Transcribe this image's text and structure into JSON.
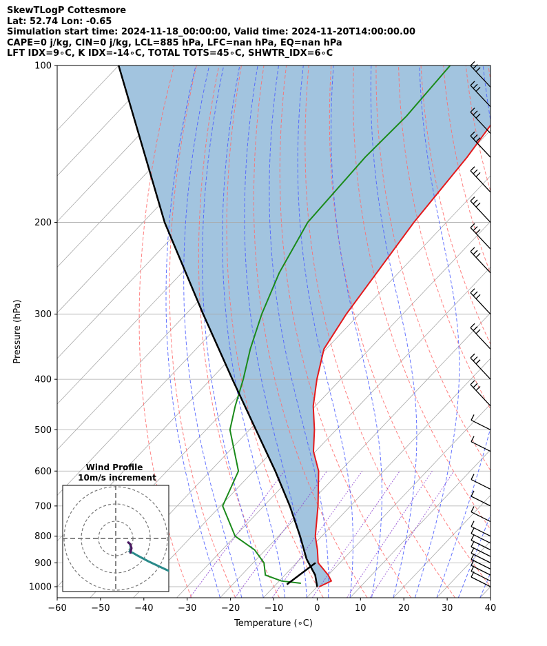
{
  "header": {
    "lines": [
      "SkewTLogP Cottesmore",
      "Lat: 52.74   Lon: -0.65",
      "Simulation start time: 2024-11-18_00:00:00, Valid time: 2024-11-20T14:00:00.00",
      "CAPE=0 j/kg, CIN=0 j/kg, LCL=885 hPa, LFC=nan hPa, EQ=nan hPa",
      "LFT IDX=9∘C, K IDX=-14∘C, TOTAL TOTS=45∘C, SHWTR_IDX=6∘C"
    ]
  },
  "chart_data": {
    "type": "skewt",
    "xlabel": "Temperature (∘C)",
    "ylabel": "Pressure (hPa)",
    "xlim": [
      -60,
      40
    ],
    "ylim": [
      1050,
      100
    ],
    "x_ticks": [
      "−60",
      "−50",
      "−40",
      "−30",
      "−20",
      "−10",
      "0",
      "10",
      "20",
      "30",
      "40"
    ],
    "y_ticks": [
      "100",
      "200",
      "300",
      "400",
      "500",
      "600",
      "700",
      "800",
      "900",
      "1000"
    ],
    "y_tick_values": [
      100,
      200,
      300,
      400,
      500,
      600,
      700,
      800,
      900,
      1000
    ],
    "grid": true,
    "colors": {
      "temperature": "#e41a1c",
      "dewpoint": "#1a8a1a",
      "parcel": "#000000",
      "cin_area": "#a2c4df",
      "dry_adiabat": "#ff6b6b",
      "moist_adiabat": "#4a5cff",
      "mixing_ratio": "#8a3fd0",
      "isotherm": "#a9a9a9",
      "hodograph": "#2a8a8a"
    },
    "temperature_profile": [
      {
        "p": 1000,
        "t": 0.5
      },
      {
        "p": 975,
        "t": 2.0
      },
      {
        "p": 950,
        "t": 0.0
      },
      {
        "p": 900,
        "t": -5.0
      },
      {
        "p": 850,
        "t": -8.0
      },
      {
        "p": 800,
        "t": -11.5
      },
      {
        "p": 700,
        "t": -17.5
      },
      {
        "p": 600,
        "t": -25.0
      },
      {
        "p": 550,
        "t": -30.5
      },
      {
        "p": 500,
        "t": -35.0
      },
      {
        "p": 450,
        "t": -40.5
      },
      {
        "p": 400,
        "t": -45.5
      },
      {
        "p": 350,
        "t": -50.5
      },
      {
        "p": 300,
        "t": -53.0
      },
      {
        "p": 250,
        "t": -55.0
      },
      {
        "p": 200,
        "t": -57.5
      },
      {
        "p": 150,
        "t": -59.5
      },
      {
        "p": 100,
        "t": -64.0
      }
    ],
    "dewpoint_profile": [
      {
        "p": 985,
        "t": -4.5
      },
      {
        "p": 975,
        "t": -9.5
      },
      {
        "p": 950,
        "t": -14.5
      },
      {
        "p": 900,
        "t": -17.5
      },
      {
        "p": 850,
        "t": -22.5
      },
      {
        "p": 800,
        "t": -30.0
      },
      {
        "p": 700,
        "t": -39.5
      },
      {
        "p": 600,
        "t": -43.5
      },
      {
        "p": 500,
        "t": -54.5
      },
      {
        "p": 450,
        "t": -58.5
      },
      {
        "p": 400,
        "t": -62.5
      },
      {
        "p": 350,
        "t": -67.5
      },
      {
        "p": 300,
        "t": -72.5
      },
      {
        "p": 250,
        "t": -77.5
      },
      {
        "p": 200,
        "t": -82.0
      },
      {
        "p": 150,
        "t": -83.0
      },
      {
        "p": 125,
        "t": -82.5
      },
      {
        "p": 100,
        "t": -83.5
      }
    ],
    "parcel_profile": [
      {
        "p": 1000,
        "t": 0.0
      },
      {
        "p": 950,
        "t": -3.0
      },
      {
        "p": 885,
        "t": -8.5
      },
      {
        "p": 800,
        "t": -15.0
      },
      {
        "p": 700,
        "t": -24.0
      },
      {
        "p": 600,
        "t": -35.0
      },
      {
        "p": 500,
        "t": -48.5
      },
      {
        "p": 400,
        "t": -65.0
      },
      {
        "p": 300,
        "t": -86.0
      },
      {
        "p": 200,
        "t": -115.0
      },
      {
        "p": 100,
        "t": -160.0
      }
    ],
    "hodograph": {
      "title": "Wind Profile",
      "subtitle": "10m/s increment",
      "rings": 3
    },
    "wind_barbs": [
      {
        "p": 1000,
        "type": "short"
      },
      {
        "p": 975,
        "type": "short"
      },
      {
        "p": 950,
        "type": "short"
      },
      {
        "p": 925,
        "type": "short"
      },
      {
        "p": 900,
        "type": "short"
      },
      {
        "p": 875,
        "type": "short"
      },
      {
        "p": 850,
        "type": "short"
      },
      {
        "p": 825,
        "type": "short"
      },
      {
        "p": 800,
        "type": "short"
      },
      {
        "p": 750,
        "type": "short"
      },
      {
        "p": 700,
        "type": "short"
      },
      {
        "p": 650,
        "type": "short"
      },
      {
        "p": 550,
        "type": "short"
      },
      {
        "p": 500,
        "type": "short"
      },
      {
        "p": 450,
        "type": "long"
      },
      {
        "p": 400,
        "type": "long"
      },
      {
        "p": 350,
        "type": "long"
      },
      {
        "p": 300,
        "type": "long"
      },
      {
        "p": 250,
        "type": "long"
      },
      {
        "p": 225,
        "type": "long"
      },
      {
        "p": 200,
        "type": "long"
      },
      {
        "p": 175,
        "type": "long"
      },
      {
        "p": 150,
        "type": "long"
      },
      {
        "p": 135,
        "type": "long"
      },
      {
        "p": 120,
        "type": "long"
      },
      {
        "p": 110,
        "type": "long"
      }
    ]
  }
}
